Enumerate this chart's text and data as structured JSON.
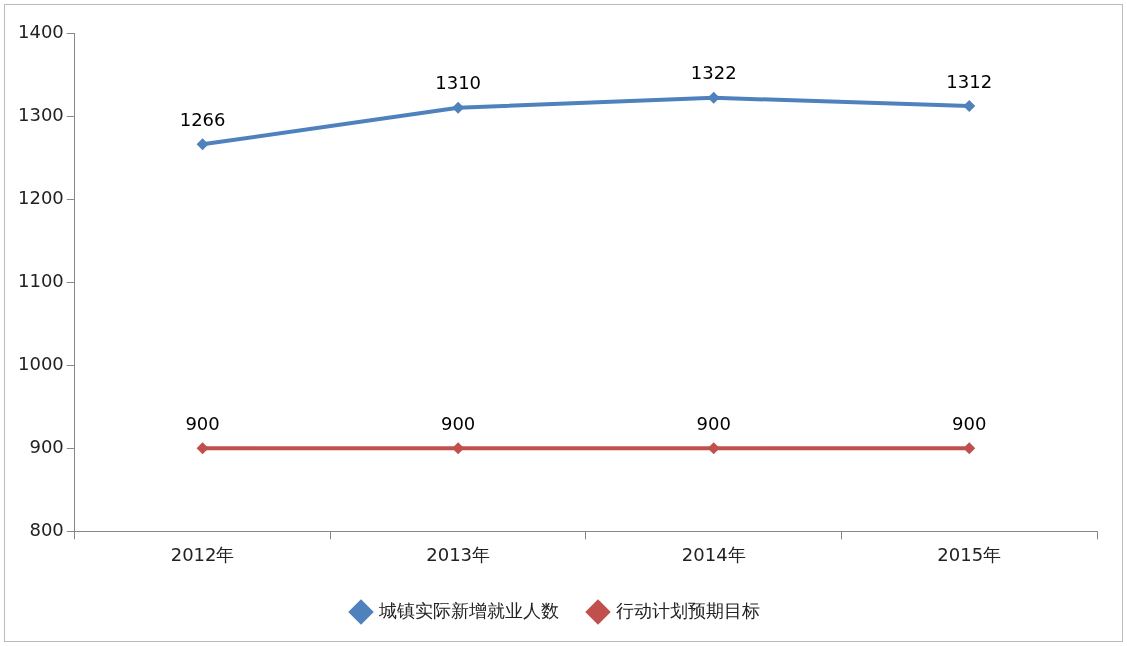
{
  "chart_data": {
    "type": "line",
    "categories": [
      "2012年",
      "2013年",
      "2014年",
      "2015年"
    ],
    "series": [
      {
        "name": "城镇实际新增就业人数",
        "color": "#4f81bd",
        "values": [
          1266,
          1310,
          1322,
          1312
        ]
      },
      {
        "name": "行动计划预期目标",
        "color": "#c0504d",
        "values": [
          900,
          900,
          900,
          900
        ]
      }
    ],
    "ylim": [
      800,
      1400
    ],
    "yticks": [
      800,
      900,
      1000,
      1100,
      1200,
      1300,
      1400
    ],
    "grid": false,
    "legend": "bottom",
    "marker": "diamond",
    "line_style": "solid",
    "data_labels": true
  }
}
